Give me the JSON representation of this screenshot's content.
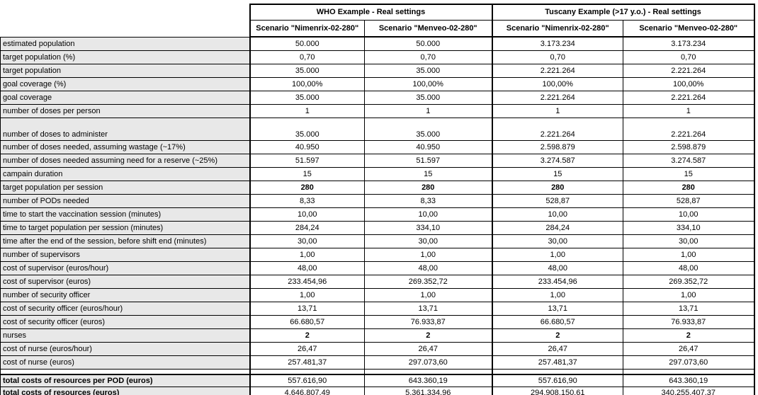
{
  "colors": {
    "label_background": "#e8e8e8",
    "cell_background": "#ffffff",
    "border": "#000000",
    "text": "#000000"
  },
  "table": {
    "groups": [
      {
        "label": "WHO Example - Real settings",
        "columns": [
          "Scenario \"Nimenrix-02-280\"",
          "Scenario \"Menveo-02-280\""
        ]
      },
      {
        "label": "Tuscany Example (>17 y.o.) - Real settings",
        "columns": [
          "Scenario \"Nimenrix-02-280\"",
          "Scenario \"Menveo-02-280\""
        ]
      }
    ],
    "rows": [
      {
        "label": "estimated population",
        "values": [
          "50.000",
          "50.000",
          "3.173.234",
          "3.173.234"
        ]
      },
      {
        "label": "target population (%)",
        "values": [
          "0,70",
          "0,70",
          "0,70",
          "0,70"
        ]
      },
      {
        "label": "target population",
        "values": [
          "35.000",
          "35.000",
          "2.221.264",
          "2.221.264"
        ]
      },
      {
        "label": "goal coverage (%)",
        "values": [
          "100,00%",
          "100,00%",
          "100,00%",
          "100,00%"
        ]
      },
      {
        "label": "goal coverage",
        "values": [
          "35.000",
          "35.000",
          "2.221.264",
          "2.221.264"
        ]
      },
      {
        "label": "number of doses per person",
        "values": [
          "1",
          "1",
          "1",
          "1"
        ]
      },
      {
        "label": "number of doses to administer",
        "values": [
          "35.000",
          "35.000",
          "2.221.264",
          "2.221.264"
        ],
        "tall": true
      },
      {
        "label": "number of doses needed, assuming wastage (~17%)",
        "values": [
          "40.950",
          "40.950",
          "2.598.879",
          "2.598.879"
        ]
      },
      {
        "label": "number of doses needed assuming need for a reserve (~25%)",
        "values": [
          "51.597",
          "51.597",
          "3.274.587",
          "3.274.587"
        ]
      },
      {
        "label": "campain duration",
        "values": [
          "15",
          "15",
          "15",
          "15"
        ]
      },
      {
        "label": "target population per session",
        "values": [
          "280",
          "280",
          "280",
          "280"
        ],
        "bold_values": true
      },
      {
        "label": "number of PODs needed",
        "values": [
          "8,33",
          "8,33",
          "528,87",
          "528,87"
        ]
      },
      {
        "label": "time to start the vaccination session (minutes)",
        "values": [
          "10,00",
          "10,00",
          "10,00",
          "10,00"
        ]
      },
      {
        "label": "time to target population per session (minutes)",
        "values": [
          "284,24",
          "334,10",
          "284,24",
          "334,10"
        ]
      },
      {
        "label": "time after the end of the session, before shift end (minutes)",
        "values": [
          "30,00",
          "30,00",
          "30,00",
          "30,00"
        ]
      },
      {
        "label": "number of supervisors",
        "values": [
          "1,00",
          "1,00",
          "1,00",
          "1,00"
        ]
      },
      {
        "label": "cost of supervisor (euros/hour)",
        "values": [
          "48,00",
          "48,00",
          "48,00",
          "48,00"
        ]
      },
      {
        "label": "cost of supervisor (euros)",
        "values": [
          "233.454,96",
          "269.352,72",
          "233.454,96",
          "269.352,72"
        ]
      },
      {
        "label": "number of security officer",
        "values": [
          "1,00",
          "1,00",
          "1,00",
          "1,00"
        ]
      },
      {
        "label": "cost of security officer (euros/hour)",
        "values": [
          "13,71",
          "13,71",
          "13,71",
          "13,71"
        ]
      },
      {
        "label": "cost of security officer (euros)",
        "values": [
          "66.680,57",
          "76.933,87",
          "66.680,57",
          "76.933,87"
        ]
      },
      {
        "label": "nurses",
        "values": [
          "2",
          "2",
          "2",
          "2"
        ],
        "bold_values": true
      },
      {
        "label": "cost of nurse (euros/hour)",
        "values": [
          "26,47",
          "26,47",
          "26,47",
          "26,47"
        ]
      },
      {
        "label": "cost of nurse (euros)",
        "values": [
          "257.481,37",
          "297.073,60",
          "257.481,37",
          "297.073,60"
        ]
      }
    ],
    "totals": [
      {
        "label": "total costs of resources per POD (euros)",
        "values": [
          "557.616,90",
          "643.360,19",
          "557.616,90",
          "643.360,19"
        ]
      },
      {
        "label": "total costs of resources (euros)",
        "values": [
          "4.646.807,49",
          "5.361.334,96",
          "294.908.150,61",
          "340.255.407,37"
        ]
      }
    ]
  }
}
